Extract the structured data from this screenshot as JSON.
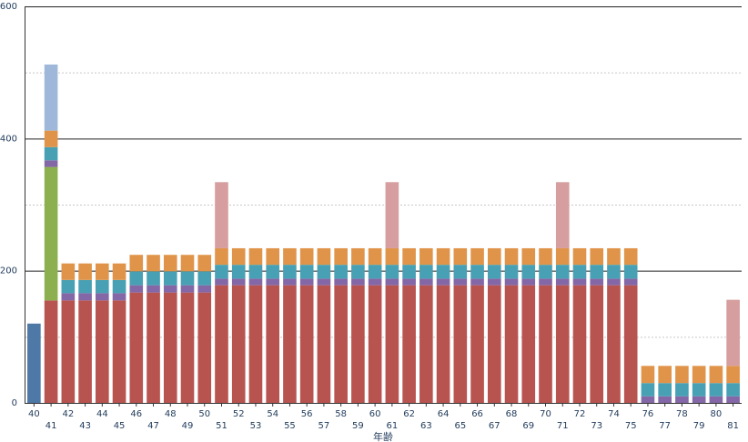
{
  "chart_data": {
    "type": "bar",
    "stacked": true,
    "xlabel": "年齢",
    "ylabel": "",
    "ylim": [
      0,
      600
    ],
    "yticks": [
      0,
      200,
      400,
      600
    ],
    "major_gridlines": [
      200,
      400,
      600
    ],
    "minor_gridlines": [
      100,
      300,
      500
    ],
    "categories": [
      "40",
      "41",
      "42",
      "43",
      "44",
      "45",
      "46",
      "47",
      "48",
      "49",
      "50",
      "51",
      "52",
      "53",
      "54",
      "55",
      "56",
      "57",
      "58",
      "59",
      "60",
      "61",
      "62",
      "63",
      "64",
      "65",
      "66",
      "67",
      "68",
      "69",
      "70",
      "71",
      "72",
      "73",
      "74",
      "75",
      "76",
      "77",
      "78",
      "79",
      "80",
      "81"
    ],
    "series": [
      {
        "color": "#4e79a7",
        "values": [
          120,
          0,
          0,
          0,
          0,
          0,
          0,
          0,
          0,
          0,
          0,
          0,
          0,
          0,
          0,
          0,
          0,
          0,
          0,
          0,
          0,
          0,
          0,
          0,
          0,
          0,
          0,
          0,
          0,
          0,
          0,
          0,
          0,
          0,
          0,
          0,
          0,
          0,
          0,
          0,
          0,
          0
        ]
      },
      {
        "color": "#b85450",
        "values": [
          0,
          155,
          155,
          155,
          155,
          155,
          167,
          167,
          167,
          167,
          167,
          178,
          178,
          178,
          178,
          178,
          178,
          178,
          178,
          178,
          178,
          178,
          178,
          178,
          178,
          178,
          178,
          178,
          178,
          178,
          178,
          178,
          178,
          178,
          178,
          178,
          0,
          0,
          0,
          0,
          0,
          0
        ]
      },
      {
        "color": "#8cb050",
        "values": [
          0,
          202,
          0,
          0,
          0,
          0,
          0,
          0,
          0,
          0,
          0,
          0,
          0,
          0,
          0,
          0,
          0,
          0,
          0,
          0,
          0,
          0,
          0,
          0,
          0,
          0,
          0,
          0,
          0,
          0,
          0,
          0,
          0,
          0,
          0,
          0,
          0,
          0,
          0,
          0,
          0,
          0
        ]
      },
      {
        "color": "#8467a6",
        "values": [
          0,
          10,
          11,
          11,
          11,
          11,
          11,
          11,
          11,
          11,
          11,
          10,
          10,
          10,
          10,
          10,
          10,
          10,
          10,
          10,
          10,
          10,
          10,
          10,
          10,
          10,
          10,
          10,
          10,
          10,
          10,
          10,
          10,
          10,
          10,
          10,
          10,
          10,
          10,
          10,
          10,
          10
        ]
      },
      {
        "color": "#47a0b3",
        "values": [
          0,
          20,
          20,
          20,
          20,
          20,
          21,
          21,
          21,
          21,
          21,
          21,
          21,
          21,
          21,
          21,
          21,
          21,
          21,
          21,
          21,
          21,
          21,
          21,
          21,
          21,
          21,
          21,
          21,
          21,
          21,
          21,
          21,
          21,
          21,
          21,
          20,
          20,
          20,
          20,
          20,
          20
        ]
      },
      {
        "color": "#e0944a",
        "values": [
          0,
          25,
          25,
          25,
          25,
          25,
          25,
          25,
          25,
          25,
          25,
          25,
          25,
          25,
          25,
          25,
          25,
          25,
          25,
          25,
          25,
          25,
          25,
          25,
          25,
          25,
          25,
          25,
          25,
          25,
          25,
          25,
          25,
          25,
          25,
          25,
          26,
          26,
          26,
          26,
          26,
          26
        ]
      },
      {
        "color": "#d69e9e",
        "values": [
          0,
          0,
          0,
          0,
          0,
          0,
          0,
          0,
          0,
          0,
          0,
          100,
          0,
          0,
          0,
          0,
          0,
          0,
          0,
          0,
          0,
          100,
          0,
          0,
          0,
          0,
          0,
          0,
          0,
          0,
          0,
          100,
          0,
          0,
          0,
          0,
          0,
          0,
          0,
          0,
          0,
          100
        ]
      },
      {
        "color": "#9fb8d9",
        "values": [
          0,
          100,
          0,
          0,
          0,
          0,
          0,
          0,
          0,
          0,
          0,
          0,
          0,
          0,
          0,
          0,
          0,
          0,
          0,
          0,
          0,
          0,
          0,
          0,
          0,
          0,
          0,
          0,
          0,
          0,
          0,
          0,
          0,
          0,
          0,
          0,
          0,
          0,
          0,
          0,
          0,
          0
        ]
      }
    ]
  }
}
